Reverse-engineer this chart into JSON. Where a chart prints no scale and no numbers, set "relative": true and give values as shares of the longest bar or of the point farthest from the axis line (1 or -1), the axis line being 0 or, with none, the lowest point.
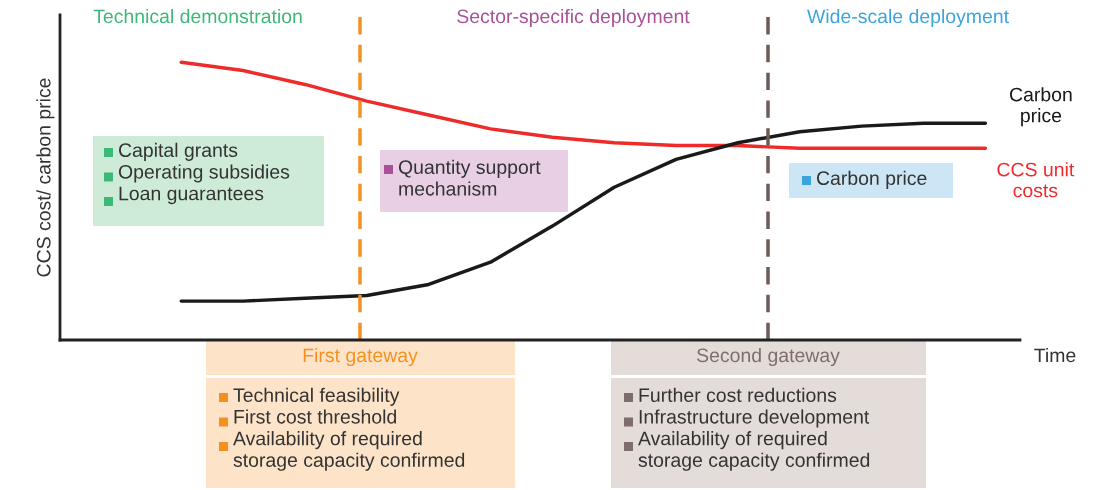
{
  "chart_data": {
    "type": "line",
    "relative": true,
    "xlabel": "Time",
    "ylabel": "CCS cost/ carbon price",
    "categories": [
      null,
      null,
      null,
      null,
      null,
      null,
      null,
      null,
      null,
      null,
      null,
      null,
      null,
      null
    ],
    "series": [
      {
        "name": "CCS unit\ncosts",
        "color": "#ee2b2b",
        "values": [
          1,
          0.97,
          0.92,
          0.86,
          0.81,
          0.76,
          0.73,
          0.71,
          0.7,
          0.7,
          0.69,
          0.69,
          0.69,
          0.69
        ]
      },
      {
        "name": "Carbon\nprice",
        "color": "#1a1a1a",
        "values": [
          0.14,
          0.14,
          0.15,
          0.16,
          0.2,
          0.28,
          0.41,
          0.55,
          0.65,
          0.71,
          0.75,
          0.77,
          0.78,
          0.78
        ]
      }
    ],
    "annotations": [
      "Technical demonstration",
      "Sector-specific deployment",
      "Wide-scale deployment",
      "Capital grants\nOperating subsidies\nLoan guarantees",
      "Quantity support\nmechanism",
      "Carbon price",
      "First gateway",
      "Technical feasibility\nFirst cost threshold\nAvailability of required\nstorage capacity confirmed",
      "Second gateway",
      "Further cost reductions\nInfrastructure development\nAvailability of required\nstorage capacity confirmed"
    ],
    "legend": false,
    "marker": "none",
    "line_style": "solid"
  }
}
